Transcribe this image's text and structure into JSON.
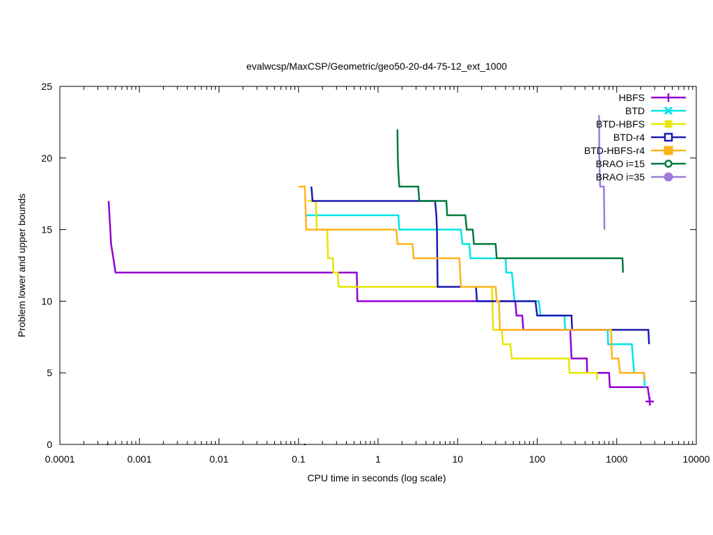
{
  "chart_data": {
    "type": "line",
    "title": "evalwcsp/MaxCSP/Geometric/geo50-20-d4-75-12_ext_1000",
    "xlabel": "CPU time in seconds (log scale)",
    "ylabel": "Problem lower and upper bounds",
    "xscale": "log",
    "xlim": [
      0.0001,
      10000
    ],
    "ylim": [
      0,
      25
    ],
    "xticks": [
      {
        "value": 0.0001,
        "label": "0.0001"
      },
      {
        "value": 0.001,
        "label": "0.001"
      },
      {
        "value": 0.01,
        "label": "0.01"
      },
      {
        "value": 0.1,
        "label": "0.1"
      },
      {
        "value": 1,
        "label": "1"
      },
      {
        "value": 10,
        "label": "10"
      },
      {
        "value": 100,
        "label": "100"
      },
      {
        "value": 1000,
        "label": "1000"
      },
      {
        "value": 10000,
        "label": "10000"
      }
    ],
    "yticks": [
      {
        "value": 0,
        "label": "0"
      },
      {
        "value": 5,
        "label": "5"
      },
      {
        "value": 10,
        "label": "10"
      },
      {
        "value": 15,
        "label": "15"
      },
      {
        "value": 20,
        "label": "20"
      },
      {
        "value": 25,
        "label": "25"
      }
    ],
    "legend_position": "top-right",
    "series": [
      {
        "name": "HBFS",
        "color": "#9400d3",
        "marker": "plus",
        "lower": [
          [
            0.0004,
            0
          ]
        ],
        "upper": [
          [
            0.00041,
            17
          ],
          [
            0.00042,
            16
          ],
          [
            0.00044,
            14
          ],
          [
            0.00047,
            13
          ],
          [
            0.0005,
            12
          ],
          [
            0.54,
            12
          ],
          [
            0.55,
            10
          ],
          [
            53,
            10
          ],
          [
            55,
            9
          ],
          [
            65,
            9
          ],
          [
            67,
            8
          ],
          [
            260,
            8
          ],
          [
            265,
            7
          ],
          [
            270,
            6
          ],
          [
            420,
            6
          ],
          [
            425,
            5
          ],
          [
            800,
            5
          ],
          [
            820,
            4
          ],
          [
            2450,
            4
          ],
          [
            2600,
            3
          ]
        ],
        "markers": [
          [
            2600,
            3
          ]
        ]
      },
      {
        "name": "BTD",
        "color": "#00e5e5",
        "marker": "x",
        "lower": [],
        "upper": [
          [
            0.12,
            16
          ],
          [
            1.8,
            16
          ],
          [
            1.85,
            15
          ],
          [
            11,
            15
          ],
          [
            11.5,
            14
          ],
          [
            14,
            14
          ],
          [
            14.5,
            13
          ],
          [
            40,
            13
          ],
          [
            41,
            12
          ],
          [
            48,
            12
          ],
          [
            52,
            10
          ],
          [
            105,
            10
          ],
          [
            110,
            9
          ],
          [
            220,
            9
          ],
          [
            225,
            8
          ],
          [
            770,
            8
          ],
          [
            780,
            7
          ],
          [
            1550,
            7
          ],
          [
            1600,
            6
          ],
          [
            1650,
            5
          ],
          [
            2200,
            5
          ],
          [
            2250,
            4
          ]
        ],
        "markers": []
      },
      {
        "name": "BTD-HBFS",
        "color": "#e5e500",
        "marker": "star",
        "lower": [
          [
            0.09,
            0
          ]
        ],
        "upper": [
          [
            0.13,
            17
          ],
          [
            0.165,
            17
          ],
          [
            0.17,
            15
          ],
          [
            0.23,
            15
          ],
          [
            0.235,
            13
          ],
          [
            0.27,
            13
          ],
          [
            0.275,
            12
          ],
          [
            0.31,
            12
          ],
          [
            0.32,
            11
          ],
          [
            27,
            11
          ],
          [
            28,
            8
          ],
          [
            36,
            8
          ],
          [
            37,
            7
          ],
          [
            46,
            7
          ],
          [
            48,
            6
          ],
          [
            250,
            6
          ],
          [
            255,
            5
          ],
          [
            560,
            5
          ],
          [
            565,
            4.5
          ]
        ],
        "markers": []
      },
      {
        "name": "BTD-r4",
        "color": "#1a1ab3",
        "marker": "square",
        "lower": [
          [
            0.12,
            0
          ]
        ],
        "upper": [
          [
            0.145,
            18
          ],
          [
            0.15,
            17
          ],
          [
            5.2,
            17
          ],
          [
            5.4,
            16
          ],
          [
            5.5,
            15
          ],
          [
            5.55,
            13
          ],
          [
            5.6,
            11
          ],
          [
            17,
            11
          ],
          [
            17.5,
            10
          ],
          [
            95,
            10
          ],
          [
            100,
            9
          ],
          [
            270,
            9
          ],
          [
            275,
            8
          ],
          [
            2500,
            8
          ],
          [
            2550,
            7
          ]
        ],
        "markers": []
      },
      {
        "name": "BTD-HBFS-r4",
        "color": "#ffb31a",
        "marker": "filled-square",
        "lower": [],
        "upper": [
          [
            0.1,
            18
          ],
          [
            0.12,
            18
          ],
          [
            0.125,
            15
          ],
          [
            1.7,
            15
          ],
          [
            1.75,
            14
          ],
          [
            2.7,
            14
          ],
          [
            2.8,
            13
          ],
          [
            10.5,
            13
          ],
          [
            11,
            11
          ],
          [
            30,
            11
          ],
          [
            31,
            10
          ],
          [
            33,
            10
          ],
          [
            34,
            8
          ],
          [
            850,
            8
          ],
          [
            870,
            6
          ],
          [
            1050,
            6
          ],
          [
            1100,
            5
          ],
          [
            2200,
            5
          ],
          [
            2250,
            4.5
          ]
        ],
        "markers": []
      },
      {
        "name": "BRAO i=15",
        "color": "#007a3d",
        "marker": "circle",
        "lower": [],
        "upper": [
          [
            1.75,
            22
          ],
          [
            1.77,
            20
          ],
          [
            1.8,
            19
          ],
          [
            1.85,
            18
          ],
          [
            3.2,
            18
          ],
          [
            3.3,
            17
          ],
          [
            7.2,
            17
          ],
          [
            7.4,
            16
          ],
          [
            12.5,
            16
          ],
          [
            13,
            15
          ],
          [
            15.5,
            15
          ],
          [
            16,
            14
          ],
          [
            30,
            14
          ],
          [
            31,
            13
          ],
          [
            1180,
            13
          ],
          [
            1200,
            12
          ]
        ],
        "markers": []
      },
      {
        "name": "BRAO i=35",
        "color": "#9e7bdb",
        "marker": "filled-circle",
        "lower": [],
        "upper": [
          [
            600,
            23
          ],
          [
            605,
            20
          ],
          [
            610,
            19
          ],
          [
            620,
            18
          ],
          [
            690,
            18
          ],
          [
            700,
            15
          ]
        ],
        "markers": []
      }
    ]
  }
}
